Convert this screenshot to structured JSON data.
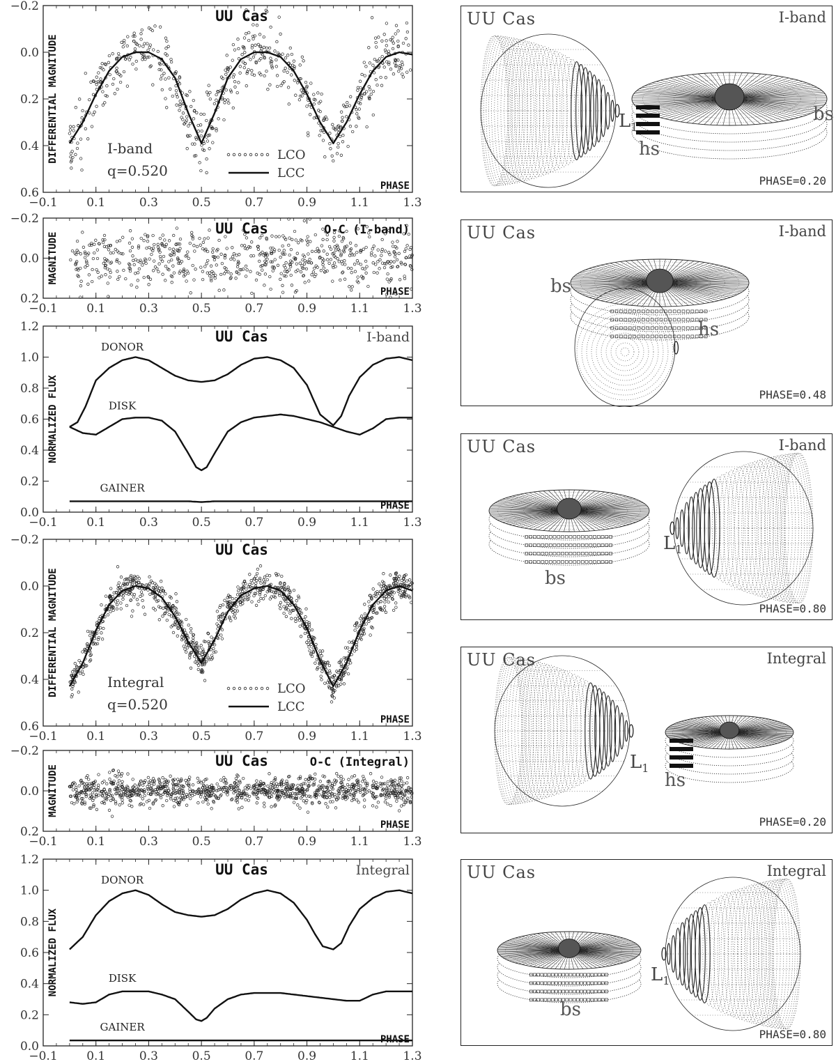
{
  "chart_data": [
    {
      "id": "p1",
      "type": "scatter",
      "title": "UU Cas",
      "right_title": "",
      "ylabel": "DIFFERENTIAL MAGNITUDE",
      "xlabel": "PHASE",
      "xlim": [
        -0.1,
        1.3
      ],
      "ylim": [
        0.6,
        -0.2
      ],
      "xticks": [
        "-0.1",
        "0.1",
        "0.3",
        "0.5",
        "0.7",
        "0.9",
        "1.1",
        "1.3"
      ],
      "yticks": [
        "-0.2",
        "0.0",
        "0.2",
        "0.4",
        "0.6"
      ],
      "annotations": [
        "I-band",
        "q=0.520"
      ],
      "legend": [
        "LCO",
        "LCC"
      ],
      "series": [
        {
          "name": "LCO",
          "kind": "points",
          "scatter": 0.07,
          "model": "lc1"
        },
        {
          "name": "LCC",
          "kind": "line",
          "model": "lc1",
          "x": [
            0.0,
            0.05,
            0.1,
            0.15,
            0.2,
            0.25,
            0.3,
            0.35,
            0.4,
            0.45,
            0.5,
            0.55,
            0.6,
            0.65,
            0.7,
            0.75,
            0.8,
            0.85,
            0.9,
            0.95,
            1.0,
            1.05,
            1.1,
            1.15,
            1.2,
            1.25,
            1.3
          ],
          "y": [
            0.39,
            0.3,
            0.18,
            0.08,
            0.02,
            0.0,
            0.0,
            0.03,
            0.11,
            0.26,
            0.39,
            0.26,
            0.11,
            0.03,
            0.0,
            0.0,
            0.02,
            0.08,
            0.18,
            0.3,
            0.39,
            0.3,
            0.18,
            0.08,
            0.02,
            0.0,
            0.01
          ]
        }
      ]
    },
    {
      "id": "p2",
      "type": "scatter",
      "title": "UU Cas",
      "right_title": "O-C (I-band)",
      "ylabel": "MAGNITUDE",
      "xlabel": "PHASE",
      "xlim": [
        -0.1,
        1.3
      ],
      "ylim": [
        0.2,
        -0.2
      ],
      "xticks": [
        "-0.1",
        "0.1",
        "0.3",
        "0.5",
        "0.7",
        "0.9",
        "1.1",
        "1.3"
      ],
      "yticks": [
        "-0.2",
        "0.0",
        "0.2"
      ],
      "series": [
        {
          "name": "O-C",
          "kind": "points",
          "scatter": 0.07,
          "model": "zero"
        }
      ]
    },
    {
      "id": "p3",
      "type": "line",
      "title": "UU Cas",
      "right_title": "I-band",
      "ylabel": "NORMALIZED FLUX",
      "xlabel": "PHASE",
      "xlim": [
        -0.1,
        1.3
      ],
      "ylim": [
        0.0,
        1.2
      ],
      "xticks": [
        "-0.1",
        "0.1",
        "0.3",
        "0.5",
        "0.7",
        "0.9",
        "1.1",
        "1.3"
      ],
      "yticks": [
        "0.0",
        "0.2",
        "0.4",
        "0.6",
        "0.8",
        "1.0",
        "1.2"
      ],
      "series": [
        {
          "name": "DONOR",
          "x": [
            0.0,
            0.03,
            0.06,
            0.1,
            0.15,
            0.2,
            0.25,
            0.3,
            0.35,
            0.4,
            0.45,
            0.5,
            0.55,
            0.6,
            0.65,
            0.7,
            0.75,
            0.8,
            0.85,
            0.9,
            0.95,
            1.0,
            1.03,
            1.06,
            1.1,
            1.15,
            1.2,
            1.25,
            1.3
          ],
          "y": [
            0.55,
            0.58,
            0.68,
            0.85,
            0.93,
            0.98,
            1.0,
            0.98,
            0.93,
            0.88,
            0.85,
            0.84,
            0.85,
            0.89,
            0.95,
            0.99,
            1.0,
            0.98,
            0.93,
            0.82,
            0.63,
            0.56,
            0.62,
            0.75,
            0.87,
            0.95,
            0.99,
            1.0,
            0.98
          ]
        },
        {
          "name": "DISK",
          "x": [
            0.0,
            0.05,
            0.1,
            0.15,
            0.2,
            0.25,
            0.3,
            0.35,
            0.4,
            0.45,
            0.48,
            0.5,
            0.52,
            0.55,
            0.6,
            0.65,
            0.7,
            0.75,
            0.8,
            0.85,
            0.9,
            0.95,
            1.0,
            1.05,
            1.1,
            1.15,
            1.2,
            1.25,
            1.3
          ],
          "y": [
            0.55,
            0.51,
            0.5,
            0.55,
            0.6,
            0.61,
            0.61,
            0.59,
            0.52,
            0.38,
            0.29,
            0.27,
            0.29,
            0.38,
            0.52,
            0.58,
            0.61,
            0.62,
            0.63,
            0.62,
            0.6,
            0.58,
            0.55,
            0.52,
            0.5,
            0.54,
            0.6,
            0.61,
            0.61
          ]
        },
        {
          "name": "GAINER",
          "x": [
            0.0,
            0.45,
            0.5,
            0.55,
            1.3
          ],
          "y": [
            0.07,
            0.07,
            0.065,
            0.07,
            0.07
          ]
        }
      ],
      "curve_labels": [
        "DONOR",
        "DISK",
        "GAINER"
      ]
    },
    {
      "id": "p4",
      "type": "scatter",
      "title": "UU Cas",
      "right_title": "",
      "ylabel": "DIFFERENTIAL MAGNITUDE",
      "xlabel": "PHASE",
      "xlim": [
        -0.1,
        1.3
      ],
      "ylim": [
        0.6,
        -0.2
      ],
      "xticks": [
        "-0.1",
        "0.1",
        "0.3",
        "0.5",
        "0.7",
        "0.9",
        "1.1",
        "1.3"
      ],
      "yticks": [
        "-0.2",
        "0.0",
        "0.2",
        "0.4",
        "0.6"
      ],
      "annotations": [
        "Integral",
        "q=0.520"
      ],
      "legend": [
        "LCO",
        "LCC"
      ],
      "series": [
        {
          "name": "LCO",
          "kind": "points",
          "scatter": 0.035,
          "model": "lc2",
          "dense": true
        },
        {
          "name": "LCC",
          "kind": "line",
          "model": "lc2",
          "x": [
            0.0,
            0.05,
            0.1,
            0.15,
            0.2,
            0.25,
            0.3,
            0.35,
            0.4,
            0.45,
            0.5,
            0.55,
            0.6,
            0.65,
            0.7,
            0.75,
            0.8,
            0.85,
            0.9,
            0.95,
            1.0,
            1.05,
            1.1,
            1.15,
            1.2,
            1.25,
            1.3
          ],
          "y": [
            0.43,
            0.33,
            0.19,
            0.08,
            0.02,
            0.0,
            0.01,
            0.05,
            0.13,
            0.24,
            0.33,
            0.23,
            0.11,
            0.04,
            0.01,
            0.0,
            0.02,
            0.08,
            0.18,
            0.32,
            0.43,
            0.33,
            0.19,
            0.08,
            0.02,
            0.0,
            0.02
          ]
        }
      ]
    },
    {
      "id": "p5",
      "type": "scatter",
      "title": "UU Cas",
      "right_title": "O-C (Integral)",
      "ylabel": "MAGNITUDE",
      "xlabel": "PHASE",
      "xlim": [
        -0.1,
        1.3
      ],
      "ylim": [
        0.2,
        -0.2
      ],
      "xticks": [
        "-0.1",
        "0.1",
        "0.3",
        "0.5",
        "0.7",
        "0.9",
        "1.1",
        "1.3"
      ],
      "yticks": [
        "-0.2",
        "0.0",
        "0.2"
      ],
      "series": [
        {
          "name": "O-C",
          "kind": "points",
          "scatter": 0.035,
          "model": "zero",
          "dense": true
        }
      ]
    },
    {
      "id": "p6",
      "type": "line",
      "title": "UU Cas",
      "right_title": "Integral",
      "ylabel": "NORMALIZED FLUX",
      "xlabel": "PHASE",
      "xlim": [
        -0.1,
        1.3
      ],
      "ylim": [
        0.0,
        1.2
      ],
      "xticks": [
        "-0.1",
        "0.1",
        "0.3",
        "0.5",
        "0.7",
        "0.9",
        "1.1",
        "1.3"
      ],
      "yticks": [
        "0.0",
        "0.2",
        "0.4",
        "0.6",
        "0.8",
        "1.0",
        "1.2"
      ],
      "series": [
        {
          "name": "DONOR",
          "x": [
            0.0,
            0.05,
            0.1,
            0.15,
            0.2,
            0.25,
            0.3,
            0.35,
            0.4,
            0.45,
            0.5,
            0.55,
            0.6,
            0.65,
            0.7,
            0.75,
            0.8,
            0.85,
            0.9,
            0.93,
            0.96,
            1.0,
            1.03,
            1.06,
            1.1,
            1.15,
            1.2,
            1.25,
            1.3
          ],
          "y": [
            0.62,
            0.7,
            0.84,
            0.93,
            0.98,
            1.0,
            0.97,
            0.91,
            0.86,
            0.84,
            0.83,
            0.84,
            0.88,
            0.94,
            0.98,
            1.0,
            0.98,
            0.92,
            0.81,
            0.72,
            0.64,
            0.62,
            0.66,
            0.77,
            0.88,
            0.95,
            0.99,
            1.0,
            0.98
          ]
        },
        {
          "name": "DISK",
          "x": [
            0.0,
            0.05,
            0.1,
            0.15,
            0.2,
            0.25,
            0.3,
            0.35,
            0.4,
            0.45,
            0.48,
            0.5,
            0.52,
            0.55,
            0.6,
            0.65,
            0.7,
            0.75,
            0.8,
            0.85,
            0.9,
            0.95,
            1.0,
            1.05,
            1.1,
            1.15,
            1.2,
            1.25,
            1.3
          ],
          "y": [
            0.28,
            0.27,
            0.28,
            0.33,
            0.35,
            0.35,
            0.35,
            0.33,
            0.3,
            0.22,
            0.17,
            0.16,
            0.18,
            0.24,
            0.3,
            0.33,
            0.34,
            0.34,
            0.34,
            0.33,
            0.32,
            0.31,
            0.3,
            0.29,
            0.29,
            0.33,
            0.35,
            0.35,
            0.35
          ]
        },
        {
          "name": "GAINER",
          "x": [
            0.0,
            1.3
          ],
          "y": [
            0.035,
            0.035
          ]
        }
      ],
      "curve_labels": [
        "DONOR",
        "DISK",
        "GAINER"
      ]
    }
  ],
  "models": [
    {
      "star": "UU Cas",
      "band": "I-band",
      "phase": "PHASE=0.20",
      "labels": [
        "L1",
        "hs",
        "bs"
      ]
    },
    {
      "star": "UU Cas",
      "band": "I-band",
      "phase": "PHASE=0.48",
      "labels": [
        "bs",
        "hs"
      ]
    },
    {
      "star": "UU Cas",
      "band": "I-band",
      "phase": "PHASE=0.80",
      "labels": [
        "L1",
        "bs"
      ]
    },
    {
      "star": "UU Cas",
      "band": "Integral",
      "phase": "PHASE=0.20",
      "labels": [
        "L1",
        "hs"
      ]
    },
    {
      "star": "UU Cas",
      "band": "Integral",
      "phase": "PHASE=0.80",
      "labels": [
        "L1",
        "bs"
      ]
    }
  ]
}
